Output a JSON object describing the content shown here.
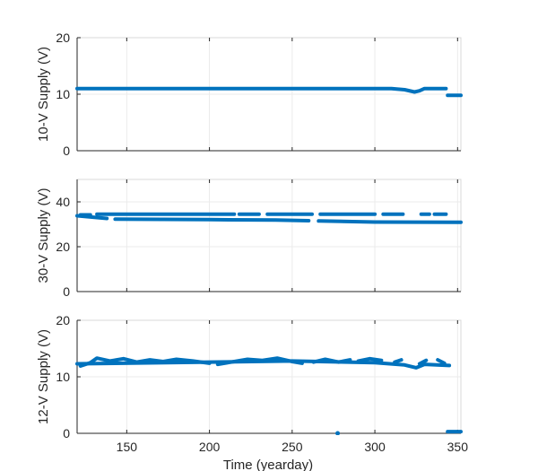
{
  "chart_data": {
    "type": "scatter",
    "xlabel": "Time (yearday)",
    "xlim": [
      120,
      352
    ],
    "xticks": [
      150,
      200,
      250,
      300,
      350
    ],
    "grid": true,
    "color": "#0072BD",
    "panels": [
      {
        "ylabel": "10-V Supply (V)",
        "ylim": [
          0,
          20
        ],
        "yticks": [
          0,
          10,
          20
        ],
        "show_xtick_labels": false,
        "series": [
          {
            "segments": [
              [
                [
                  120,
                  11.0
                ],
                [
                  200,
                  11.0
                ],
                [
                  250,
                  11.0
                ],
                [
                  310,
                  11.0
                ],
                [
                  318,
                  10.8
                ],
                [
                  324,
                  10.4
                ],
                [
                  327,
                  10.6
                ],
                [
                  330,
                  11.0
                ],
                [
                  343,
                  11.0
                ]
              ],
              [
                [
                  344,
                  9.8
                ],
                [
                  352,
                  9.8
                ]
              ]
            ]
          }
        ]
      },
      {
        "ylabel": "30-V Supply (V)",
        "ylim": [
          0,
          50
        ],
        "yticks": [
          0,
          20,
          40
        ],
        "show_xtick_labels": false,
        "series": [
          {
            "segments": [
              [
                [
                  120,
                  33.8
                ],
                [
                  129,
                  33.2
                ],
                [
                  138,
                  32.6
                ]
              ],
              [
                [
                  143,
                  32.3
                ],
                [
                  200,
                  32.1
                ],
                [
                  240,
                  31.9
                ],
                [
                  260,
                  31.6
                ]
              ],
              [
                [
                  266,
                  31.5
                ],
                [
                  300,
                  31.0
                ],
                [
                  352,
                  30.9
                ]
              ]
            ]
          },
          {
            "segments": [
              [
                [
                  122,
                  34.2
                ],
                [
                  128,
                  34.2
                ]
              ],
              [
                [
                  132,
                  34.5
                ],
                [
                  215,
                  34.5
                ]
              ],
              [
                [
                  218,
                  34.5
                ],
                [
                  230,
                  34.5
                ]
              ],
              [
                [
                  235,
                  34.5
                ],
                [
                  262,
                  34.5
                ]
              ],
              [
                [
                  267,
                  34.5
                ],
                [
                  300,
                  34.5
                ]
              ],
              [
                [
                  305,
                  34.5
                ],
                [
                  317,
                  34.5
                ]
              ],
              [
                [
                  328,
                  34.5
                ],
                [
                  333,
                  34.5
                ]
              ],
              [
                [
                  336,
                  34.5
                ],
                [
                  343,
                  34.5
                ]
              ]
            ]
          }
        ]
      },
      {
        "ylabel": "12-V Supply (V)",
        "ylim": [
          0,
          20
        ],
        "yticks": [
          0,
          10,
          20
        ],
        "show_xtick_labels": true,
        "series": [
          {
            "segments": [
              [
                [
                  120,
                  12.3
                ],
                [
                  200,
                  12.6
                ],
                [
                  250,
                  12.8
                ],
                [
                  300,
                  12.5
                ],
                [
                  318,
                  12.1
                ],
                [
                  325,
                  11.6
                ],
                [
                  330,
                  12.2
                ],
                [
                  345,
                  12.0
                ]
              ]
            ]
          },
          {
            "segments": [
              [
                [
                  122,
                  11.9
                ],
                [
                  128,
                  12.5
                ],
                [
                  132,
                  13.3
                ],
                [
                  140,
                  12.8
                ],
                [
                  148,
                  13.2
                ],
                [
                  156,
                  12.6
                ],
                [
                  164,
                  13.0
                ],
                [
                  172,
                  12.7
                ],
                [
                  180,
                  13.1
                ],
                [
                  190,
                  12.8
                ],
                [
                  200,
                  12.4
                ]
              ],
              [
                [
                  205,
                  12.2
                ],
                [
                  215,
                  12.7
                ],
                [
                  223,
                  13.1
                ],
                [
                  232,
                  12.9
                ],
                [
                  241,
                  13.3
                ],
                [
                  250,
                  12.7
                ],
                [
                  256,
                  12.4
                ]
              ],
              [
                [
                  263,
                  12.6
                ],
                [
                  270,
                  13.1
                ],
                [
                  278,
                  12.6
                ],
                [
                  285,
                  13.0
                ]
              ],
              [
                [
                  290,
                  12.8
                ],
                [
                  297,
                  13.2
                ],
                [
                  304,
                  12.9
                ]
              ],
              [
                [
                  312,
                  12.6
                ],
                [
                  316,
                  13.0
                ]
              ],
              [
                [
                  327,
                  12.3
                ],
                [
                  331,
                  12.9
                ]
              ],
              [
                [
                  338,
                  13.0
                ],
                [
                  342,
                  12.4
                ]
              ]
            ]
          },
          {
            "segments": [
              [
                [
                  344,
                  0.3
                ],
                [
                  352,
                  0.3
                ]
              ]
            ]
          },
          {
            "points": [
              [
                277.5,
                0.0
              ]
            ]
          }
        ]
      }
    ]
  }
}
